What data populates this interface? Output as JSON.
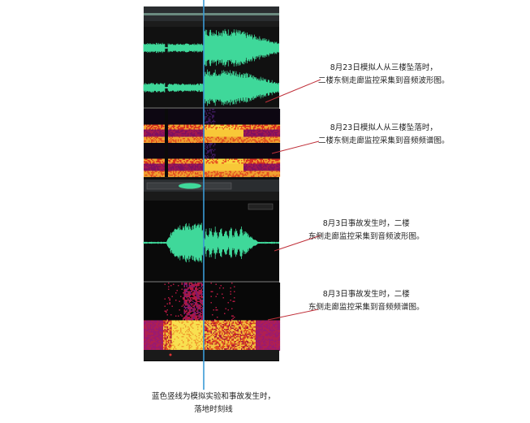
{
  "annotations": [
    {
      "line1": "8月23日模拟人从三楼坠落时，",
      "line2": "二楼东侧走廊监控采集到音频波形图。"
    },
    {
      "line1": "8月23日模拟人从三楼坠落时，",
      "line2": "二楼东侧走廊监控采集到音频频谱图。"
    },
    {
      "line1": "8月3日事故发生时，二楼",
      "line2": "东侧走廊监控采集到音频波形图。"
    },
    {
      "line1": "8月3日事故发生时，二楼",
      "line2": "东侧走廊监控采集到音频频谱图。"
    }
  ],
  "caption": {
    "line1": "蓝色竖线为模拟实验和事故发生时，",
    "line2": "落地时刻线"
  },
  "colors": {
    "waveform": "#3fd89a",
    "marker_line": "#3a9ad6",
    "pointer": "#c0303a",
    "background": "#000000"
  }
}
